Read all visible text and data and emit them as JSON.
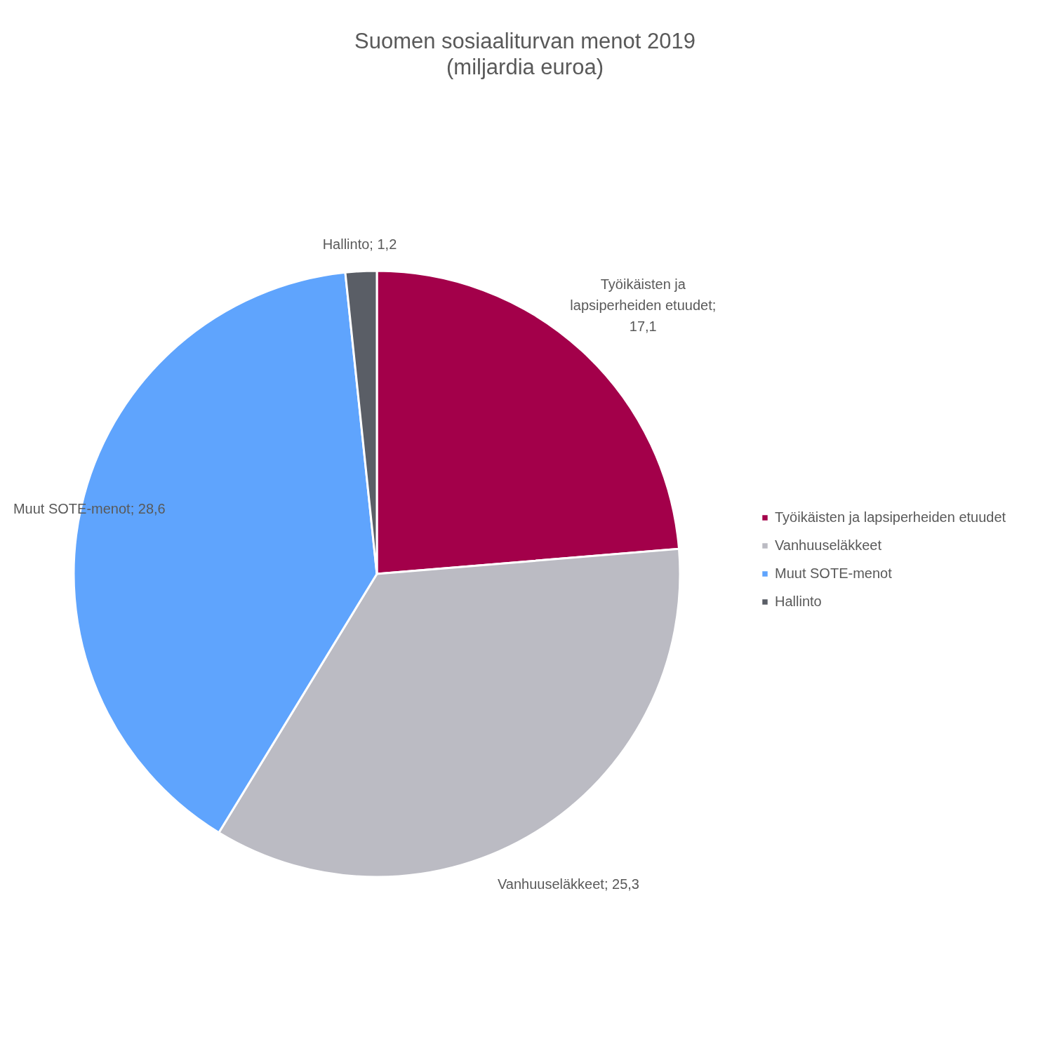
{
  "chart_data": {
    "type": "pie",
    "title": "Suomen sosiaaliturvan menot 2019",
    "subtitle": "(miljardia euroa)",
    "categories": [
      "Työikäisten ja lapsiperheiden etuudet",
      "Vanhuuseläkkeet",
      "Muut SOTE-menot",
      "Hallinto"
    ],
    "values": [
      17.1,
      25.3,
      28.6,
      1.2
    ],
    "value_labels": [
      "Työikäisten ja lapsiperheiden etuudet; 17,1",
      "Vanhuuseläkkeet; 25,3",
      "Muut SOTE-menot; 28,6",
      "Hallinto; 1,2"
    ],
    "colors": [
      "#a3004a",
      "#bbbbc3",
      "#5fa4fd",
      "#5a5e66"
    ],
    "legend": "right"
  }
}
